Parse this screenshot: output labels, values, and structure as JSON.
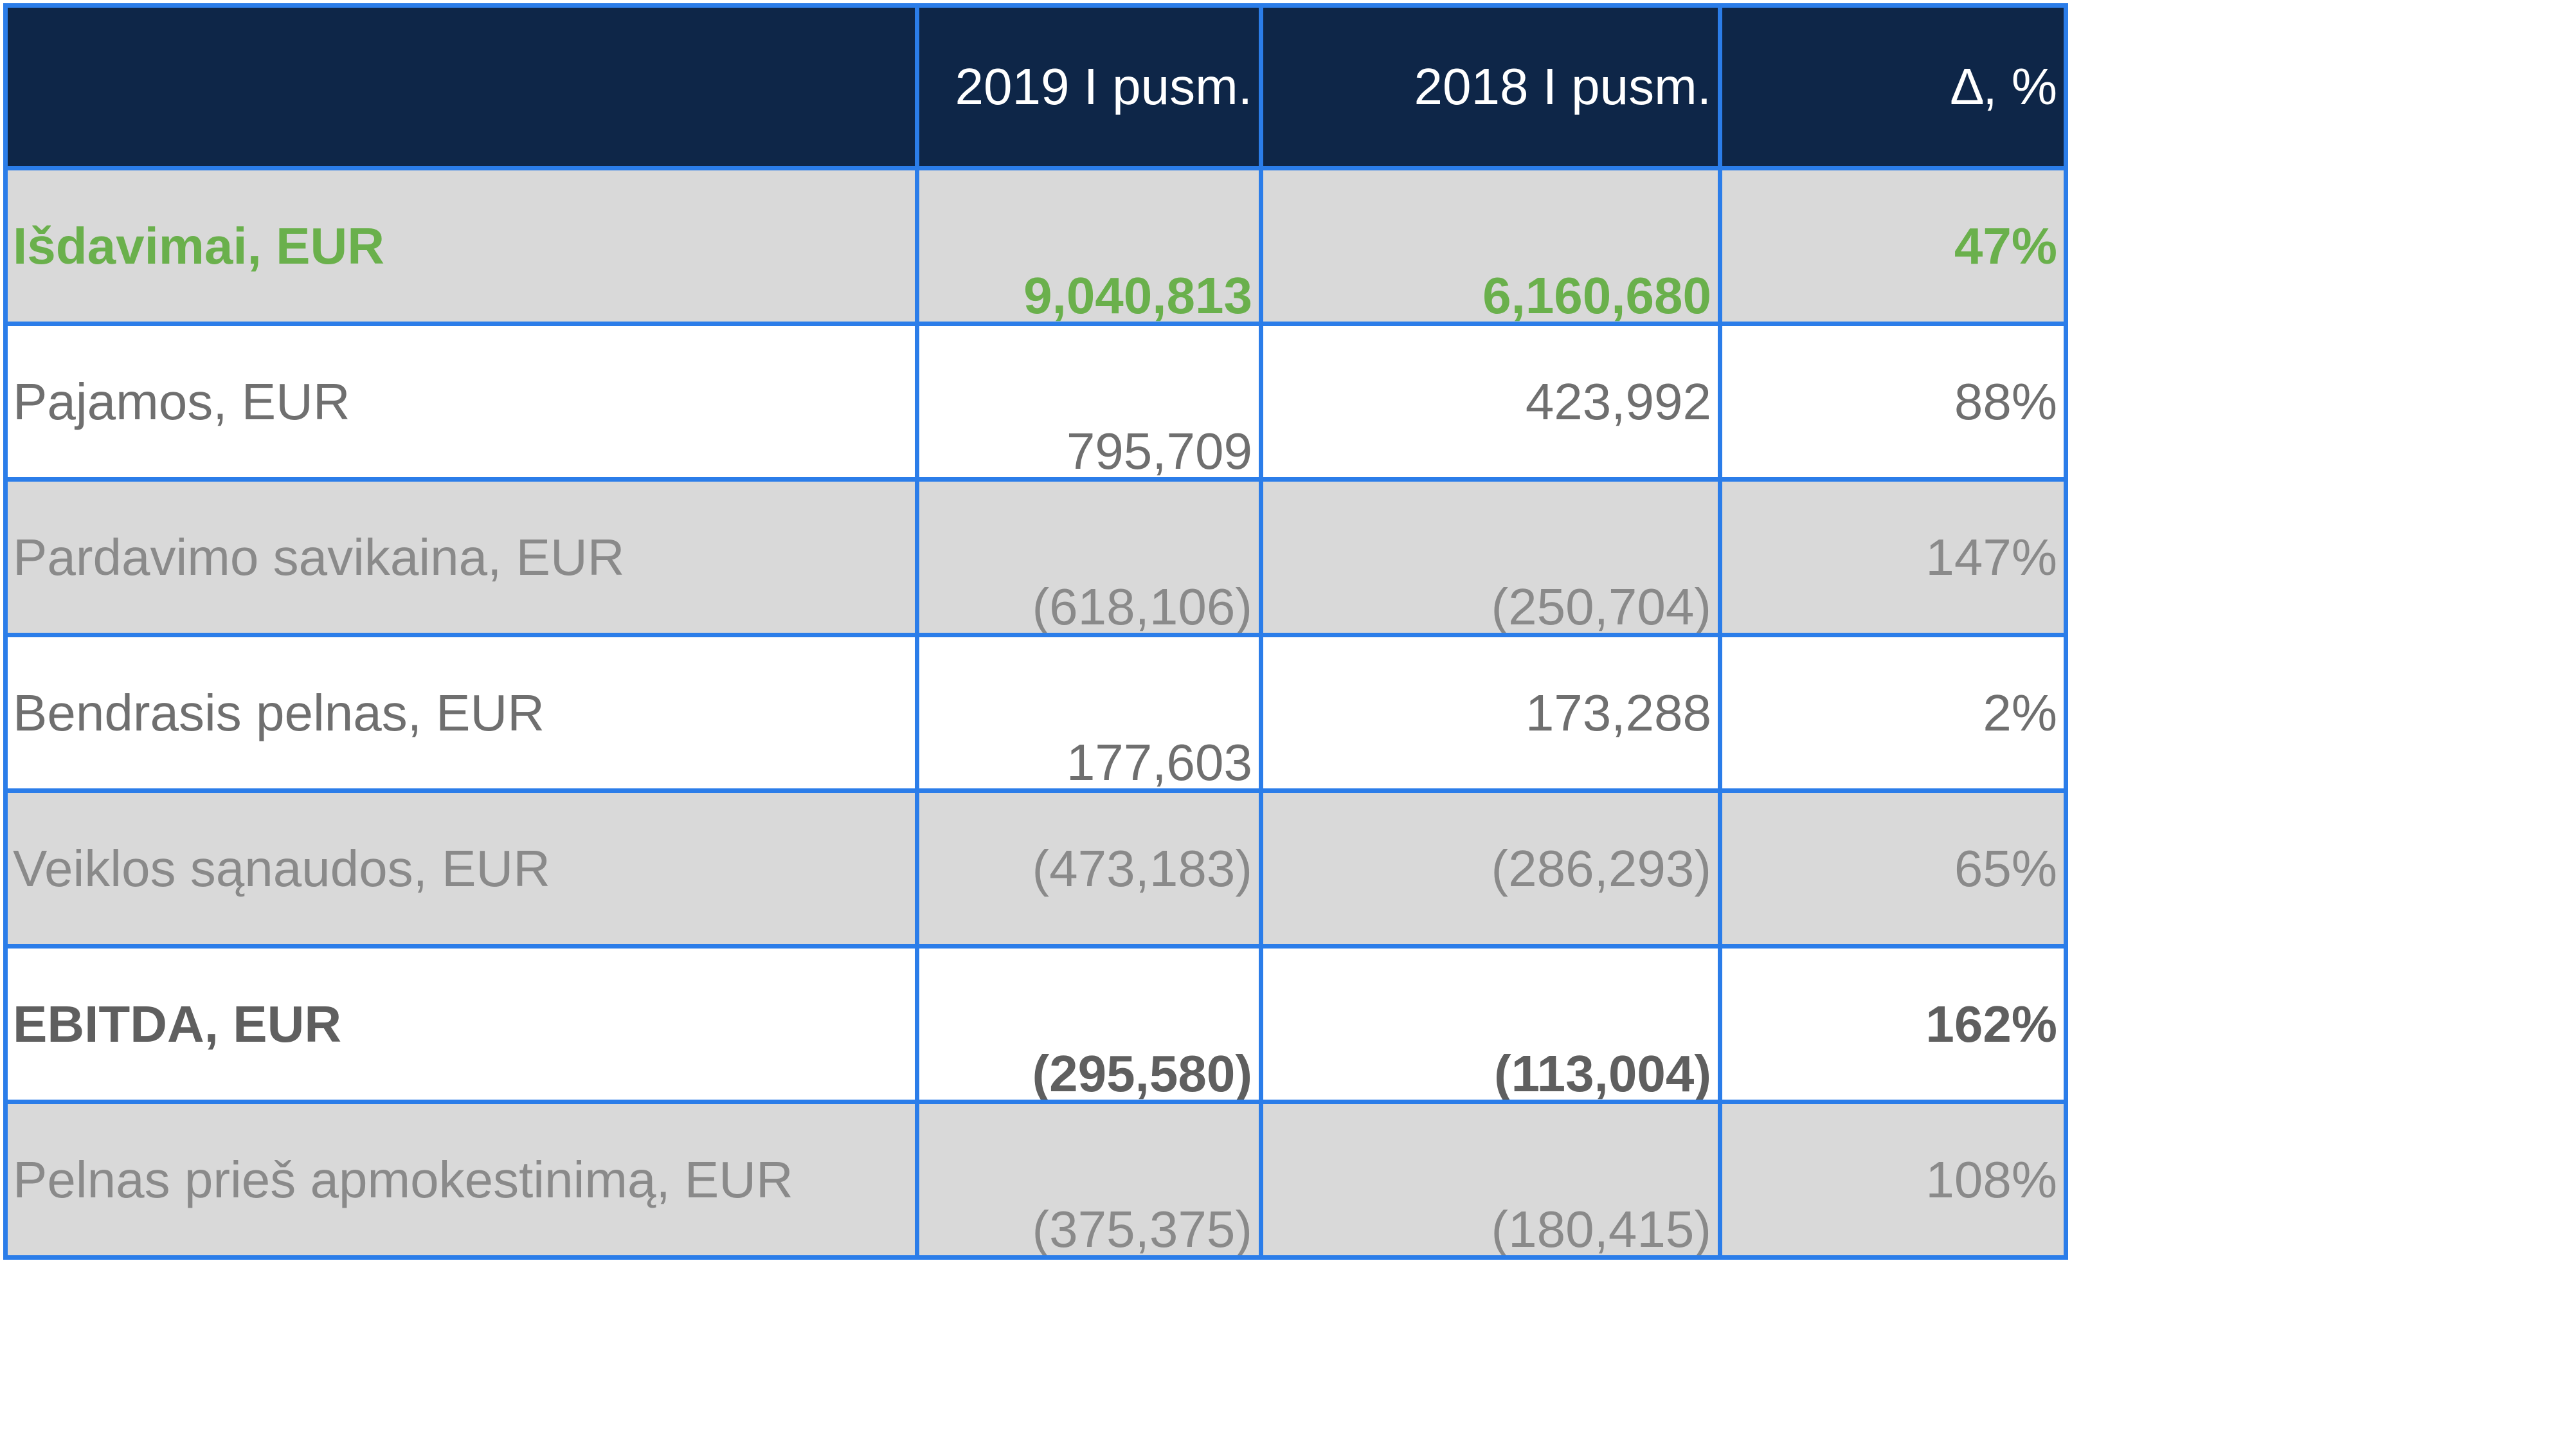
{
  "table": {
    "headers": [
      "",
      "2019 I pusm.",
      "2018 I pusm.",
      "∆, %"
    ],
    "rows": [
      {
        "label": "Išdavimai, EUR",
        "v2019": "9,040,813",
        "v2018": "6,160,680",
        "delta": "47%"
      },
      {
        "label": "Pajamos, EUR",
        "v2019": "795,709",
        "v2018": "423,992",
        "delta": "88%"
      },
      {
        "label": "Pardavimo savikaina, EUR",
        "v2019": "(618,106)",
        "v2018": "(250,704)",
        "delta": "147%"
      },
      {
        "label": "Bendrasis pelnas, EUR",
        "v2019": "177,603",
        "v2018": "173,288",
        "delta": "2%"
      },
      {
        "label": "Veiklos sąnaudos, EUR",
        "v2019": "(473,183)",
        "v2018": "(286,293)",
        "delta": "65%"
      },
      {
        "label": "EBITDA, EUR",
        "v2019": "(295,580)",
        "v2018": "(113,004)",
        "delta": "162%"
      },
      {
        "label": "Pelnas prieš apmokestinimą, EUR",
        "v2019": "(375,375)",
        "v2018": "(180,415)",
        "delta": "108%"
      }
    ]
  },
  "colors": {
    "header_bg": "#0e2648",
    "border": "#2b7de9",
    "shaded_row": "#d9d9d9",
    "highlight_green": "#6ab04c"
  }
}
